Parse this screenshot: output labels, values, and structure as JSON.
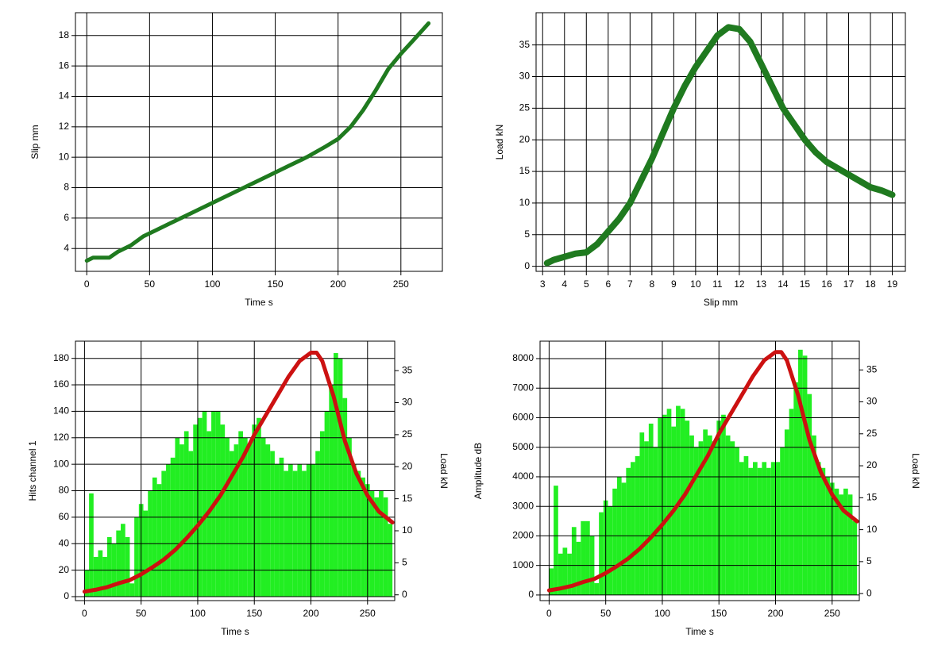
{
  "chart_data": [
    {
      "type": "line",
      "xlabel": "Time s",
      "ylabel": "Slip mm",
      "color": "#1f7a1f",
      "x": [
        0,
        5,
        10,
        18,
        25,
        35,
        45,
        55,
        65,
        75,
        85,
        100,
        115,
        130,
        145,
        160,
        175,
        190,
        200,
        210,
        220,
        230,
        240,
        250,
        260,
        272
      ],
      "values": [
        3.2,
        3.4,
        3.4,
        3.4,
        3.8,
        4.2,
        4.8,
        5.2,
        5.6,
        6.0,
        6.4,
        7.0,
        7.6,
        8.2,
        8.8,
        9.4,
        10.0,
        10.7,
        11.2,
        12.0,
        13.1,
        14.4,
        15.8,
        16.8,
        17.7,
        18.8
      ],
      "xlim": [
        -9,
        283
      ],
      "ylim": [
        2.5,
        19.5
      ],
      "xticks": [
        0,
        50,
        100,
        150,
        200,
        250
      ],
      "yticks": [
        4,
        6,
        8,
        10,
        12,
        14,
        16,
        18
      ],
      "grid": true
    },
    {
      "type": "line",
      "xlabel": "Slip mm",
      "ylabel": "Load kN",
      "color": "#1f7a1f",
      "x": [
        3.2,
        3.5,
        4,
        4.5,
        5,
        5.5,
        6,
        6.5,
        7,
        7.5,
        8,
        8.5,
        9,
        9.5,
        10,
        10.5,
        11,
        11.5,
        12,
        12.5,
        13,
        13.5,
        14,
        14.5,
        15,
        15.5,
        16,
        16.5,
        17,
        17.5,
        18,
        18.5,
        19
      ],
      "values": [
        0.5,
        1,
        1.5,
        2,
        2.2,
        3.5,
        5.5,
        7.5,
        10,
        13.5,
        17,
        21,
        25,
        28.5,
        31.5,
        34,
        36.5,
        37.8,
        37.5,
        35.5,
        32,
        28.5,
        25,
        22.5,
        20,
        18,
        16.5,
        15.5,
        14.5,
        13.5,
        12.5,
        12,
        11.3
      ],
      "xlim": [
        2.7,
        19.6
      ],
      "ylim": [
        -0.8,
        40.1
      ],
      "xticks": [
        3,
        4,
        5,
        6,
        7,
        8,
        9,
        10,
        11,
        12,
        13,
        14,
        15,
        16,
        17,
        18,
        19
      ],
      "yticks": [
        0,
        5,
        10,
        15,
        20,
        25,
        30,
        35
      ],
      "grid": true
    },
    {
      "type": "histogram",
      "xlabel": "Time s",
      "ylabel": "Hits channel 1",
      "y2label": "Load kN",
      "series": [
        {
          "color": "#22ee22",
          "bins": [
            0,
            4,
            8,
            12,
            16,
            20,
            24,
            28,
            32,
            36,
            40,
            44,
            48,
            52,
            56,
            60,
            64,
            68,
            72,
            76,
            80,
            84,
            88,
            92,
            96,
            100,
            104,
            108,
            112,
            116,
            120,
            124,
            128,
            132,
            136,
            140,
            144,
            148,
            152,
            156,
            160,
            164,
            168,
            172,
            176,
            180,
            184,
            188,
            192,
            196,
            200,
            204,
            208,
            212,
            216,
            220,
            224,
            228,
            232,
            236,
            240,
            244,
            248,
            252,
            256,
            260,
            264,
            268,
            272
          ],
          "values": [
            20,
            78,
            30,
            35,
            30,
            45,
            40,
            50,
            55,
            45,
            10,
            60,
            70,
            65,
            80,
            90,
            85,
            95,
            100,
            105,
            120,
            115,
            125,
            110,
            130,
            135,
            140,
            125,
            140,
            140,
            130,
            120,
            110,
            115,
            125,
            120,
            115,
            130,
            135,
            120,
            115,
            110,
            100,
            105,
            95,
            100,
            95,
            100,
            95,
            100,
            100,
            110,
            125,
            140,
            160,
            184,
            180,
            150,
            120,
            100,
            95,
            90,
            85,
            80,
            75,
            80,
            75,
            55
          ]
        },
        {
          "color": "#cc1111",
          "axis": "y2",
          "x": [
            0,
            10,
            20,
            30,
            40,
            50,
            60,
            70,
            80,
            90,
            100,
            110,
            120,
            130,
            140,
            150,
            160,
            170,
            180,
            190,
            200,
            205,
            210,
            220,
            230,
            240,
            250,
            260,
            272
          ],
          "values": [
            0.5,
            0.8,
            1.2,
            1.8,
            2.3,
            3.2,
            4.3,
            5.5,
            7,
            8.8,
            10.8,
            13,
            15.5,
            18.5,
            21.5,
            25,
            28,
            31,
            34,
            36.5,
            37.8,
            37.8,
            36.5,
            31,
            24,
            19,
            15.5,
            13,
            11.3
          ]
        }
      ],
      "xlim": [
        -8,
        274
      ],
      "ylim": [
        -3,
        193
      ],
      "y2lim": [
        -0.9,
        39.6
      ],
      "xticks": [
        0,
        50,
        100,
        150,
        200,
        250
      ],
      "yticks": [
        0,
        20,
        40,
        60,
        80,
        100,
        120,
        140,
        160,
        180
      ],
      "y2ticks": [
        0,
        5,
        10,
        15,
        20,
        25,
        30,
        35
      ],
      "grid": true
    },
    {
      "type": "histogram",
      "xlabel": "Time s",
      "ylabel": "Amplitude dB",
      "y2label": "Load kN",
      "series": [
        {
          "color": "#22ee22",
          "bins": [
            0,
            4,
            8,
            12,
            16,
            20,
            24,
            28,
            32,
            36,
            40,
            44,
            48,
            52,
            56,
            60,
            64,
            68,
            72,
            76,
            80,
            84,
            88,
            92,
            96,
            100,
            104,
            108,
            112,
            116,
            120,
            124,
            128,
            132,
            136,
            140,
            144,
            148,
            152,
            156,
            160,
            164,
            168,
            172,
            176,
            180,
            184,
            188,
            192,
            196,
            200,
            204,
            208,
            212,
            216,
            220,
            224,
            228,
            232,
            236,
            240,
            244,
            248,
            252,
            256,
            260,
            264,
            268,
            272
          ],
          "values": [
            900,
            3700,
            1400,
            1600,
            1400,
            2300,
            1800,
            2500,
            2500,
            2000,
            400,
            2800,
            3200,
            3000,
            3600,
            4000,
            3800,
            4300,
            4500,
            4700,
            5500,
            5200,
            5800,
            5000,
            6000,
            6100,
            6300,
            5700,
            6400,
            6300,
            5900,
            5400,
            5000,
            5200,
            5600,
            5400,
            5200,
            5900,
            6100,
            5400,
            5200,
            5000,
            4500,
            4700,
            4300,
            4500,
            4300,
            4500,
            4300,
            4500,
            4500,
            5000,
            5600,
            6300,
            7200,
            8300,
            8100,
            6800,
            5400,
            4500,
            4300,
            4000,
            3800,
            3600,
            3400,
            3600,
            3400,
            2500
          ]
        },
        {
          "color": "#cc1111",
          "axis": "y2",
          "x": [
            0,
            10,
            20,
            30,
            40,
            50,
            60,
            70,
            80,
            90,
            100,
            110,
            120,
            130,
            140,
            150,
            160,
            170,
            180,
            190,
            200,
            205,
            210,
            220,
            230,
            240,
            250,
            260,
            272
          ],
          "values": [
            0.5,
            0.8,
            1.2,
            1.8,
            2.3,
            3.2,
            4.3,
            5.5,
            7,
            8.8,
            10.8,
            13,
            15.5,
            18.5,
            21.5,
            25,
            28,
            31,
            34,
            36.5,
            37.8,
            37.8,
            36.5,
            31,
            24,
            19,
            15.5,
            13,
            11.3
          ]
        }
      ],
      "xlim": [
        -8,
        274
      ],
      "ylim": [
        -190,
        8590
      ],
      "y2lim": [
        -1.1,
        39.5
      ],
      "xticks": [
        0,
        50,
        100,
        150,
        200,
        250
      ],
      "yticks": [
        0,
        1000,
        2000,
        3000,
        4000,
        5000,
        6000,
        7000,
        8000
      ],
      "y2ticks": [
        0,
        5,
        10,
        15,
        20,
        25,
        30,
        35
      ],
      "grid": true
    }
  ]
}
